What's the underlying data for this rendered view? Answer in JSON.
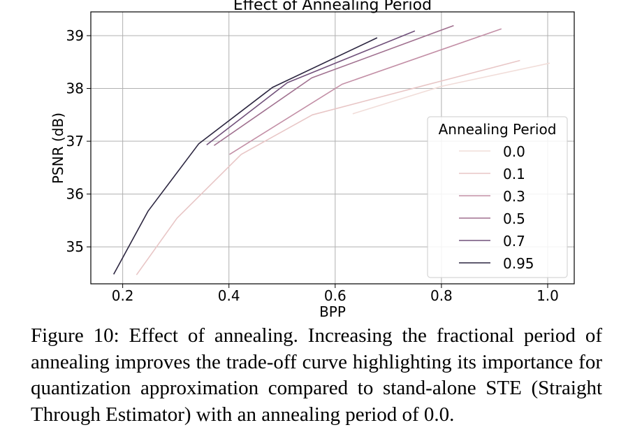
{
  "chart_data": {
    "type": "line",
    "title": "Effect of Annealing Period",
    "xlabel": "BPP",
    "ylabel": "PSNR (dB)",
    "xlim": [
      0.14,
      1.05
    ],
    "ylim": [
      34.3,
      39.45
    ],
    "xticks": [
      0.2,
      0.4,
      0.6,
      0.8,
      1.0
    ],
    "xtick_labels": [
      "0.2",
      "0.4",
      "0.6",
      "0.8",
      "1.0"
    ],
    "yticks": [
      35,
      36,
      37,
      38,
      39
    ],
    "ytick_labels": [
      "35",
      "36",
      "37",
      "38",
      "39"
    ],
    "grid": true,
    "legend": {
      "title": "Annealing Period",
      "placement": "right"
    },
    "series": [
      {
        "name": "0.0",
        "color": "#f1ddd9",
        "x": [
          0.633,
          0.8,
          1.004
        ],
        "y": [
          37.52,
          38.04,
          38.48
        ]
      },
      {
        "name": "0.1",
        "color": "#e8c6c6",
        "x": [
          0.226,
          0.302,
          0.423,
          0.557,
          0.773,
          0.948
        ],
        "y": [
          34.47,
          35.54,
          36.75,
          37.5,
          38.07,
          38.53
        ]
      },
      {
        "name": "0.3",
        "color": "#c38fa6",
        "x": [
          0.401,
          0.613,
          0.913
        ],
        "y": [
          36.75,
          38.08,
          39.13
        ]
      },
      {
        "name": "0.5",
        "color": "#a0708f",
        "x": [
          0.372,
          0.556,
          0.823
        ],
        "y": [
          36.92,
          38.2,
          39.19
        ]
      },
      {
        "name": "0.7",
        "color": "#70507a",
        "x": [
          0.358,
          0.51,
          0.75
        ],
        "y": [
          36.93,
          38.11,
          39.09
        ]
      },
      {
        "name": "0.95",
        "color": "#2c2640",
        "x": [
          0.183,
          0.248,
          0.343,
          0.482,
          0.679
        ],
        "y": [
          34.48,
          35.68,
          36.95,
          38.02,
          38.96
        ]
      }
    ]
  },
  "caption": "Figure 10: Effect of annealing. Increasing the fractional period of annealing improves the trade-off curve highlighting its importance for quantization approximation compared to stand-alone STE (Straight Through Estimator) with an annealing period of 0.0."
}
